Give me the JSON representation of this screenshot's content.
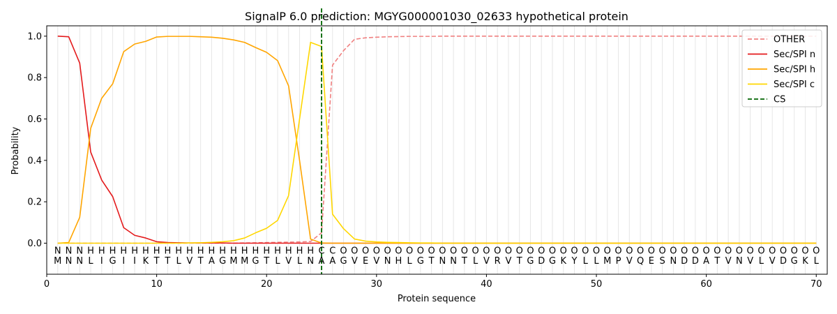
{
  "chart_data": {
    "type": "line",
    "title": "SignalP 6.0 prediction: MGYG000001030_02633 hypothetical protein",
    "xlabel": "Protein sequence",
    "ylabel": "Probability",
    "xlim": [
      0,
      71
    ],
    "ylim": [
      -0.15,
      1.05
    ],
    "xticks": [
      0,
      10,
      20,
      30,
      40,
      50,
      60,
      70
    ],
    "yticks": [
      0.0,
      0.2,
      0.4,
      0.6,
      0.8,
      1.0
    ],
    "ytick_labels": [
      "0.0",
      "0.2",
      "0.4",
      "0.6",
      "0.8",
      "1.0"
    ],
    "grid": "vertical lines at each residue",
    "legend_position": "top-right",
    "sequence": "MNNLIGIIKTTLVTAGMMGTLVLNAAGVEVNHLGTNNTLVRVTGDGKYLLMPVQESNDDATVNVLVDGKL",
    "labels": "NNNHHHHHHHHHHHHHHHHHHHHHCCOOOOOOOOOOOOOOOOOOOOOOOOOOOOOOOOOOOOOOOOOOOO",
    "label_colors": {
      "N": "#ff0000",
      "H": "#ffa500",
      "C": "#ffd700",
      "O": "#808080"
    },
    "cleavage_site": 25,
    "series": [
      {
        "name": "OTHER",
        "color": "#f08080",
        "style": "dashed",
        "values": [
          0.0,
          0.0,
          0.0,
          0.0,
          0.0,
          0.0,
          0.0,
          0.0,
          0.0,
          0.0,
          0.0,
          0.0,
          0.0,
          0.0,
          0.0,
          0.0,
          0.0,
          0.001,
          0.002,
          0.003,
          0.004,
          0.005,
          0.006,
          0.008,
          0.05,
          0.86,
          0.93,
          0.985,
          0.992,
          0.995,
          0.997,
          0.998,
          0.999,
          0.999,
          0.999,
          1.0,
          1.0,
          1.0,
          1.0,
          1.0,
          1.0,
          1.0,
          1.0,
          1.0,
          1.0,
          1.0,
          1.0,
          1.0,
          1.0,
          1.0,
          1.0,
          1.0,
          1.0,
          1.0,
          1.0,
          1.0,
          1.0,
          1.0,
          1.0,
          1.0,
          1.0,
          1.0,
          1.0,
          1.0,
          1.0,
          1.0,
          1.0,
          1.0,
          1.0,
          1.0
        ]
      },
      {
        "name": "Sec/SPI n",
        "color": "#e41a1c",
        "style": "solid",
        "values": [
          1.0,
          0.997,
          0.87,
          0.44,
          0.305,
          0.225,
          0.075,
          0.038,
          0.025,
          0.007,
          0.003,
          0.002,
          0.001,
          0.001,
          0.001,
          0.001,
          0.0,
          0.0,
          0.0,
          0.0,
          0.0,
          0.0,
          0.0,
          0.0,
          0.0,
          0.0,
          0.0,
          0.0,
          0.0,
          0.0,
          0.0,
          0.0,
          0.0,
          0.0,
          0.0,
          0.0,
          0.0,
          0.0,
          0.0,
          0.0,
          0.0,
          0.0,
          0.0,
          0.0,
          0.0,
          0.0,
          0.0,
          0.0,
          0.0,
          0.0,
          0.0,
          0.0,
          0.0,
          0.0,
          0.0,
          0.0,
          0.0,
          0.0,
          0.0,
          0.0,
          0.0,
          0.0,
          0.0,
          0.0,
          0.0,
          0.0,
          0.0,
          0.0,
          0.0,
          0.0
        ]
      },
      {
        "name": "Sec/SPI h",
        "color": "#ffa500",
        "style": "solid",
        "values": [
          0.0,
          0.003,
          0.125,
          0.555,
          0.7,
          0.77,
          0.925,
          0.962,
          0.975,
          0.996,
          0.999,
          0.999,
          0.999,
          0.997,
          0.995,
          0.99,
          0.982,
          0.97,
          0.945,
          0.922,
          0.882,
          0.76,
          0.4,
          0.02,
          0.001,
          0.0,
          0.0,
          0.0,
          0.0,
          0.0,
          0.0,
          0.0,
          0.0,
          0.0,
          0.0,
          0.0,
          0.0,
          0.0,
          0.0,
          0.0,
          0.0,
          0.0,
          0.0,
          0.0,
          0.0,
          0.0,
          0.0,
          0.0,
          0.0,
          0.0,
          0.0,
          0.0,
          0.0,
          0.0,
          0.0,
          0.0,
          0.0,
          0.0,
          0.0,
          0.0,
          0.0,
          0.0,
          0.0,
          0.0,
          0.0,
          0.0,
          0.0,
          0.0,
          0.0,
          0.0
        ]
      },
      {
        "name": "Sec/SPI c",
        "color": "#ffd700",
        "style": "solid",
        "values": [
          0.0,
          0.0,
          0.0,
          0.0,
          0.0,
          0.0,
          0.0,
          0.0,
          0.0,
          0.0,
          0.0,
          0.0,
          0.001,
          0.002,
          0.004,
          0.007,
          0.012,
          0.025,
          0.05,
          0.072,
          0.11,
          0.23,
          0.6,
          0.97,
          0.95,
          0.14,
          0.07,
          0.02,
          0.01,
          0.006,
          0.004,
          0.003,
          0.002,
          0.001,
          0.001,
          0.0,
          0.0,
          0.0,
          0.0,
          0.0,
          0.0,
          0.0,
          0.0,
          0.0,
          0.0,
          0.0,
          0.0,
          0.0,
          0.0,
          0.0,
          0.0,
          0.0,
          0.0,
          0.0,
          0.0,
          0.0,
          0.0,
          0.0,
          0.0,
          0.0,
          0.0,
          0.0,
          0.0,
          0.0,
          0.0,
          0.0,
          0.0,
          0.0,
          0.0,
          0.0
        ]
      }
    ],
    "cs_legend": {
      "name": "CS",
      "color": "#006400",
      "style": "dashed"
    }
  }
}
